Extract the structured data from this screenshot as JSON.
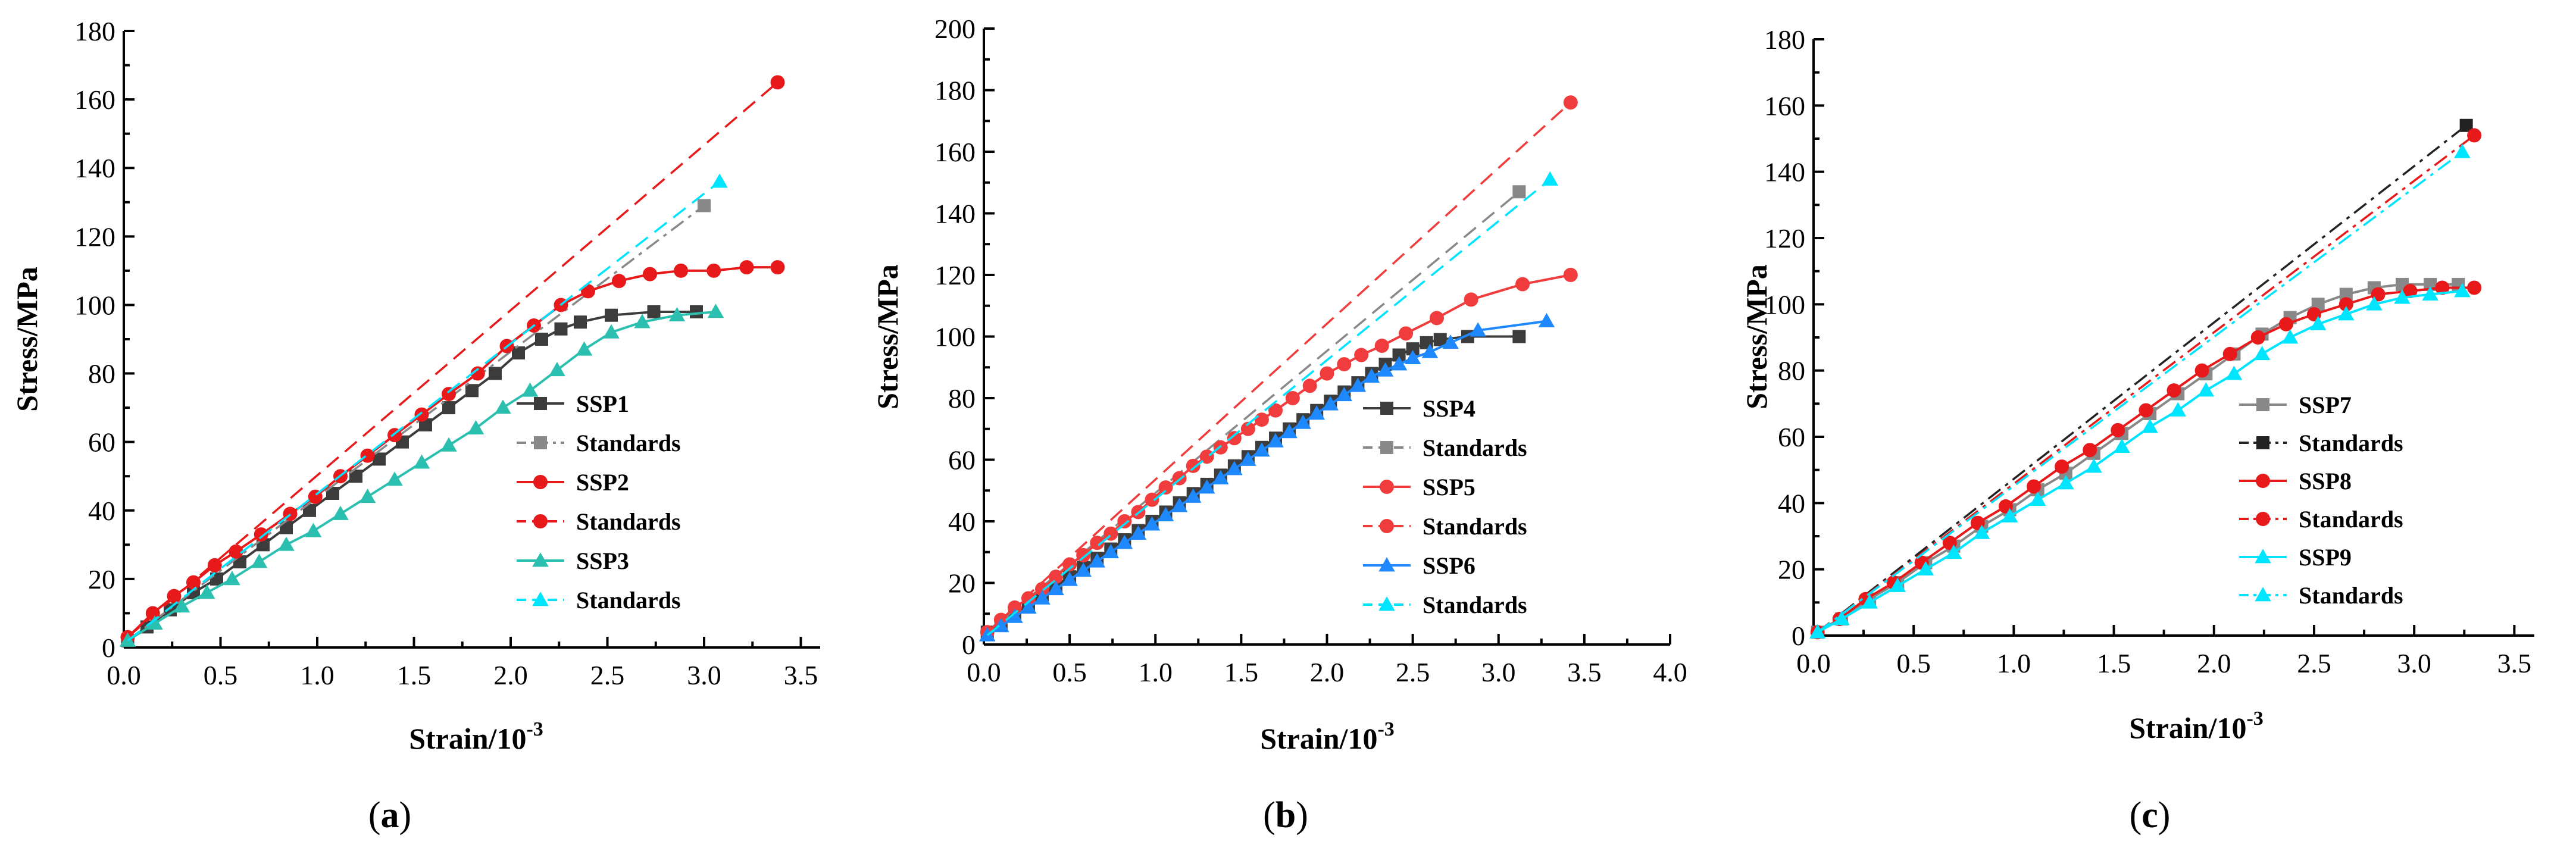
{
  "chart_data": [
    {
      "type": "line",
      "panel_label": "(a)",
      "xlabel": "Strain/10",
      "xlabel_exp": "-3",
      "ylabel": "Stress/MPa",
      "xlim": [
        0,
        3.6
      ],
      "ylim": [
        0,
        180
      ],
      "xticks": [
        "0.0",
        "0.5",
        "1.0",
        "1.5",
        "2.0",
        "2.5",
        "3.0",
        "3.5"
      ],
      "yticks": [
        "0",
        "20",
        "40",
        "60",
        "80",
        "100",
        "120",
        "140",
        "160",
        "180"
      ],
      "series": [
        {
          "name": "SSP1",
          "color": "#3c3c3c",
          "dash": "solid",
          "marker": "square",
          "x": [
            0.02,
            0.12,
            0.24,
            0.36,
            0.48,
            0.6,
            0.72,
            0.84,
            0.96,
            1.08,
            1.2,
            1.32,
            1.44,
            1.56,
            1.68,
            1.8,
            1.92,
            2.04,
            2.16,
            2.26,
            2.36,
            2.52,
            2.74,
            2.96
          ],
          "y": [
            2,
            6,
            11,
            16,
            20,
            25,
            30,
            35,
            40,
            45,
            50,
            55,
            60,
            65,
            70,
            75,
            80,
            86,
            90,
            93,
            95,
            97,
            98,
            98
          ]
        },
        {
          "name": "Standards",
          "color": "#888888",
          "dash": "dashdot",
          "marker": "square",
          "marker_end_only": true,
          "x": [
            0.02,
            3.0
          ],
          "y": [
            2,
            129
          ]
        },
        {
          "name": "SSP2",
          "color": "#e8191a",
          "dash": "solid",
          "marker": "circle",
          "x": [
            0.02,
            0.15,
            0.26,
            0.36,
            0.47,
            0.58,
            0.71,
            0.86,
            0.99,
            1.12,
            1.26,
            1.4,
            1.54,
            1.68,
            1.83,
            1.98,
            2.12,
            2.26,
            2.4,
            2.56,
            2.72,
            2.88,
            3.05,
            3.22,
            3.38
          ],
          "y": [
            3,
            10,
            15,
            19,
            24,
            28,
            33,
            39,
            44,
            50,
            56,
            62,
            68,
            74,
            80,
            88,
            94,
            100,
            104,
            107,
            109,
            110,
            110,
            111,
            111
          ]
        },
        {
          "name": "Standards",
          "color": "#e8191a",
          "dash": "dashed",
          "marker": "circle",
          "marker_end_only": true,
          "x": [
            0.02,
            3.38
          ],
          "y": [
            3,
            165
          ]
        },
        {
          "name": "SSP3",
          "color": "#2abfae",
          "dash": "solid",
          "marker": "triangle",
          "x": [
            0.02,
            0.16,
            0.3,
            0.43,
            0.56,
            0.7,
            0.84,
            0.98,
            1.12,
            1.26,
            1.4,
            1.54,
            1.68,
            1.82,
            1.96,
            2.1,
            2.24,
            2.38,
            2.52,
            2.68,
            2.86,
            3.06
          ],
          "y": [
            2,
            7,
            12,
            16,
            20,
            25,
            30,
            34,
            39,
            44,
            49,
            54,
            59,
            64,
            70,
            75,
            81,
            87,
            92,
            95,
            97,
            98
          ]
        },
        {
          "name": "Standards",
          "color": "#00e5ff",
          "dash": "dashed",
          "marker": "triangle",
          "marker_end_only": true,
          "x": [
            0.02,
            3.08
          ],
          "y": [
            2,
            136
          ]
        }
      ]
    },
    {
      "type": "line",
      "panel_label": "(b)",
      "xlabel": "Strain/10",
      "xlabel_exp": "-3",
      "ylabel": "Stress/MPa",
      "xlim": [
        0,
        4.0
      ],
      "ylim": [
        0,
        200
      ],
      "xticks": [
        "0.0",
        "0.5",
        "1.0",
        "1.5",
        "2.0",
        "2.5",
        "3.0",
        "3.5",
        "4.0"
      ],
      "yticks": [
        "0",
        "20",
        "40",
        "60",
        "80",
        "100",
        "120",
        "140",
        "160",
        "180",
        "200"
      ],
      "series": [
        {
          "name": "SSP4",
          "color": "#3c3c3c",
          "dash": "solid",
          "marker": "square",
          "x": [
            0.02,
            0.1,
            0.18,
            0.26,
            0.34,
            0.42,
            0.5,
            0.58,
            0.66,
            0.74,
            0.82,
            0.9,
            0.98,
            1.06,
            1.14,
            1.22,
            1.3,
            1.38,
            1.46,
            1.54,
            1.62,
            1.7,
            1.78,
            1.86,
            1.94,
            2.02,
            2.1,
            2.18,
            2.26,
            2.34,
            2.42,
            2.5,
            2.58,
            2.66,
            2.82,
            3.12
          ],
          "y": [
            4,
            7,
            10,
            13,
            16,
            19,
            22,
            25,
            28,
            31,
            34,
            37,
            40,
            43,
            46,
            49,
            52,
            55,
            58,
            61,
            64,
            67,
            70,
            73,
            76,
            79,
            82,
            85,
            88,
            91,
            94,
            96,
            98,
            99,
            100,
            100
          ]
        },
        {
          "name": "Standards",
          "color": "#888888",
          "dash": "dashed",
          "marker": "square",
          "marker_end_only": true,
          "x": [
            0.02,
            3.12
          ],
          "y": [
            4,
            147
          ]
        },
        {
          "name": "SSP5",
          "color": "#f03c3c",
          "dash": "solid",
          "marker": "circle",
          "x": [
            0.02,
            0.1,
            0.18,
            0.26,
            0.34,
            0.42,
            0.5,
            0.58,
            0.66,
            0.74,
            0.82,
            0.9,
            0.98,
            1.06,
            1.14,
            1.22,
            1.3,
            1.38,
            1.46,
            1.54,
            1.62,
            1.7,
            1.8,
            1.9,
            2.0,
            2.1,
            2.2,
            2.32,
            2.46,
            2.64,
            2.84,
            3.14,
            3.42
          ],
          "y": [
            4,
            8,
            12,
            15,
            18,
            22,
            26,
            29,
            33,
            36,
            40,
            43,
            47,
            51,
            54,
            58,
            61,
            64,
            67,
            70,
            73,
            76,
            80,
            84,
            88,
            91,
            94,
            97,
            101,
            106,
            112,
            117,
            120
          ]
        },
        {
          "name": "Standards",
          "color": "#f03c3c",
          "dash": "dashed",
          "marker": "circle",
          "marker_end_only": true,
          "x": [
            0.02,
            3.42
          ],
          "y": [
            4,
            176
          ]
        },
        {
          "name": "SSP6",
          "color": "#1e88ff",
          "dash": "solid",
          "marker": "triangle",
          "x": [
            0.02,
            0.1,
            0.18,
            0.26,
            0.34,
            0.42,
            0.5,
            0.58,
            0.66,
            0.74,
            0.82,
            0.9,
            0.98,
            1.06,
            1.14,
            1.22,
            1.3,
            1.38,
            1.46,
            1.54,
            1.62,
            1.7,
            1.78,
            1.86,
            1.94,
            2.02,
            2.1,
            2.18,
            2.26,
            2.34,
            2.42,
            2.5,
            2.6,
            2.72,
            2.88,
            3.28
          ],
          "y": [
            3,
            6,
            9,
            12,
            15,
            18,
            21,
            24,
            27,
            30,
            33,
            36,
            39,
            42,
            45,
            48,
            51,
            54,
            57,
            60,
            63,
            66,
            69,
            72,
            75,
            78,
            81,
            84,
            87,
            89,
            91,
            93,
            95,
            98,
            102,
            105
          ]
        },
        {
          "name": "Standards",
          "color": "#00e5ff",
          "dash": "dashed",
          "marker": "triangle",
          "marker_end_only": true,
          "x": [
            0.02,
            3.3
          ],
          "y": [
            3,
            151
          ]
        }
      ]
    },
    {
      "type": "line",
      "panel_label": "(c)",
      "xlabel": "Strain/10",
      "xlabel_exp": "-3",
      "ylabel": "Stress/MPa",
      "xlim": [
        0,
        3.6
      ],
      "ylim": [
        0,
        180
      ],
      "xticks": [
        "0.0",
        "0.5",
        "1.0",
        "1.5",
        "2.0",
        "2.5",
        "3.0",
        "3.5"
      ],
      "yticks": [
        "0",
        "20",
        "40",
        "60",
        "80",
        "100",
        "120",
        "140",
        "160",
        "180"
      ],
      "series": [
        {
          "name": "SSP7",
          "color": "#888888",
          "dash": "solid",
          "marker": "square",
          "x": [
            0.02,
            0.14,
            0.28,
            0.42,
            0.56,
            0.7,
            0.84,
            0.98,
            1.12,
            1.26,
            1.4,
            1.54,
            1.68,
            1.82,
            1.96,
            2.1,
            2.24,
            2.38,
            2.52,
            2.66,
            2.8,
            2.94,
            3.08,
            3.22
          ],
          "y": [
            1,
            5,
            11,
            16,
            22,
            27,
            33,
            38,
            44,
            49,
            55,
            61,
            67,
            73,
            79,
            85,
            91,
            96,
            100,
            103,
            105,
            106,
            106,
            106
          ]
        },
        {
          "name": "Standards",
          "color": "#222222",
          "dash": "dashdot",
          "marker": "square",
          "marker_end_only": true,
          "x": [
            0.02,
            3.26
          ],
          "y": [
            1,
            154
          ]
        },
        {
          "name": "SSP8",
          "color": "#e8191a",
          "dash": "solid",
          "marker": "circle",
          "x": [
            0.02,
            0.13,
            0.26,
            0.4,
            0.54,
            0.68,
            0.82,
            0.96,
            1.1,
            1.24,
            1.38,
            1.52,
            1.66,
            1.8,
            1.94,
            2.08,
            2.22,
            2.36,
            2.5,
            2.66,
            2.82,
            2.98,
            3.14,
            3.3
          ],
          "y": [
            1,
            5,
            11,
            16,
            22,
            28,
            34,
            39,
            45,
            51,
            56,
            62,
            68,
            74,
            80,
            85,
            90,
            94,
            97,
            100,
            103,
            104,
            105,
            105
          ]
        },
        {
          "name": "Standards",
          "color": "#e8191a",
          "dash": "dashdot",
          "marker": "circle",
          "marker_end_only": true,
          "x": [
            0.02,
            3.3
          ],
          "y": [
            1,
            151
          ]
        },
        {
          "name": "SSP9",
          "color": "#00e5ff",
          "dash": "solid",
          "marker": "triangle",
          "x": [
            0.02,
            0.14,
            0.28,
            0.42,
            0.56,
            0.7,
            0.84,
            0.98,
            1.12,
            1.26,
            1.4,
            1.54,
            1.68,
            1.82,
            1.96,
            2.1,
            2.24,
            2.38,
            2.52,
            2.66,
            2.8,
            2.94,
            3.08,
            3.24
          ],
          "y": [
            1,
            5,
            10,
            15,
            20,
            25,
            31,
            36,
            41,
            46,
            51,
            57,
            63,
            68,
            74,
            79,
            85,
            90,
            94,
            97,
            100,
            102,
            103,
            104
          ]
        },
        {
          "name": "Standards",
          "color": "#00e5ff",
          "dash": "dashdot",
          "marker": "triangle",
          "marker_end_only": true,
          "x": [
            0.02,
            3.24
          ],
          "y": [
            1,
            146
          ]
        }
      ]
    }
  ]
}
